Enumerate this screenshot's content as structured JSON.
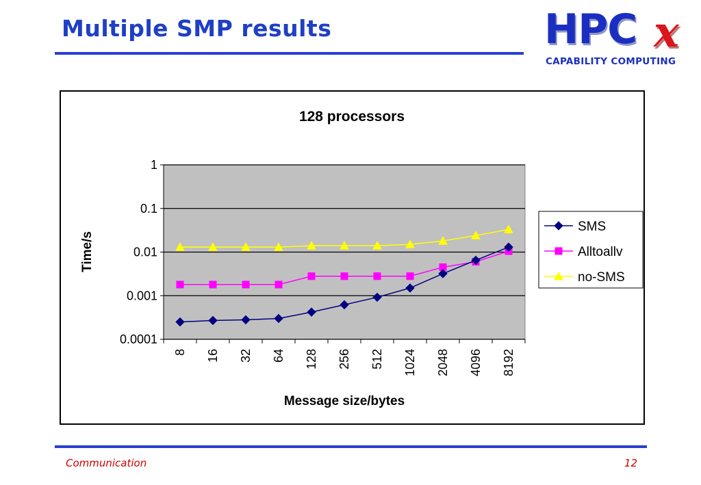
{
  "slide": {
    "title": "Multiple SMP results",
    "footer_left": "Communication",
    "page_number": "12"
  },
  "logo": {
    "main": "HPC",
    "x_mark": "x",
    "subtitle": "CAPABILITY COMPUTING"
  },
  "colors": {
    "title_blue": "#1f3fc4",
    "footer_red": "#cc0000",
    "plot_bg": "#c0c0c0",
    "sms": "#000080",
    "alltoallv": "#ff00ff",
    "no_sms": "#ffff00"
  },
  "chart_data": {
    "type": "line",
    "title": "128 processors",
    "xlabel": "Message size/bytes",
    "ylabel": "Time/s",
    "y_scale": "log",
    "ylim": [
      0.0001,
      1
    ],
    "y_ticks": [
      "1",
      "0.1",
      "0.01",
      "0.001",
      "0.0001"
    ],
    "y_tick_values": [
      1,
      0.1,
      0.01,
      0.001,
      0.0001
    ],
    "grid": true,
    "legend_position": "right",
    "categories": [
      "8",
      "16",
      "32",
      "64",
      "128",
      "256",
      "512",
      "1024",
      "2048",
      "4096",
      "8192"
    ],
    "series": [
      {
        "name": "SMS",
        "marker": "diamond",
        "color": "#000080",
        "values": [
          0.00025,
          0.00027,
          0.00028,
          0.0003,
          0.00042,
          0.00062,
          0.00092,
          0.0015,
          0.0032,
          0.0065,
          0.013
        ]
      },
      {
        "name": "Alltoallv",
        "marker": "square",
        "color": "#ff00ff",
        "values": [
          0.0018,
          0.0018,
          0.0018,
          0.0018,
          0.0028,
          0.0028,
          0.0028,
          0.0028,
          0.0045,
          0.006,
          0.0105
        ]
      },
      {
        "name": "no-SMS",
        "marker": "triangle",
        "color": "#ffff00",
        "values": [
          0.013,
          0.013,
          0.013,
          0.013,
          0.014,
          0.014,
          0.014,
          0.015,
          0.018,
          0.024,
          0.033
        ]
      }
    ]
  }
}
